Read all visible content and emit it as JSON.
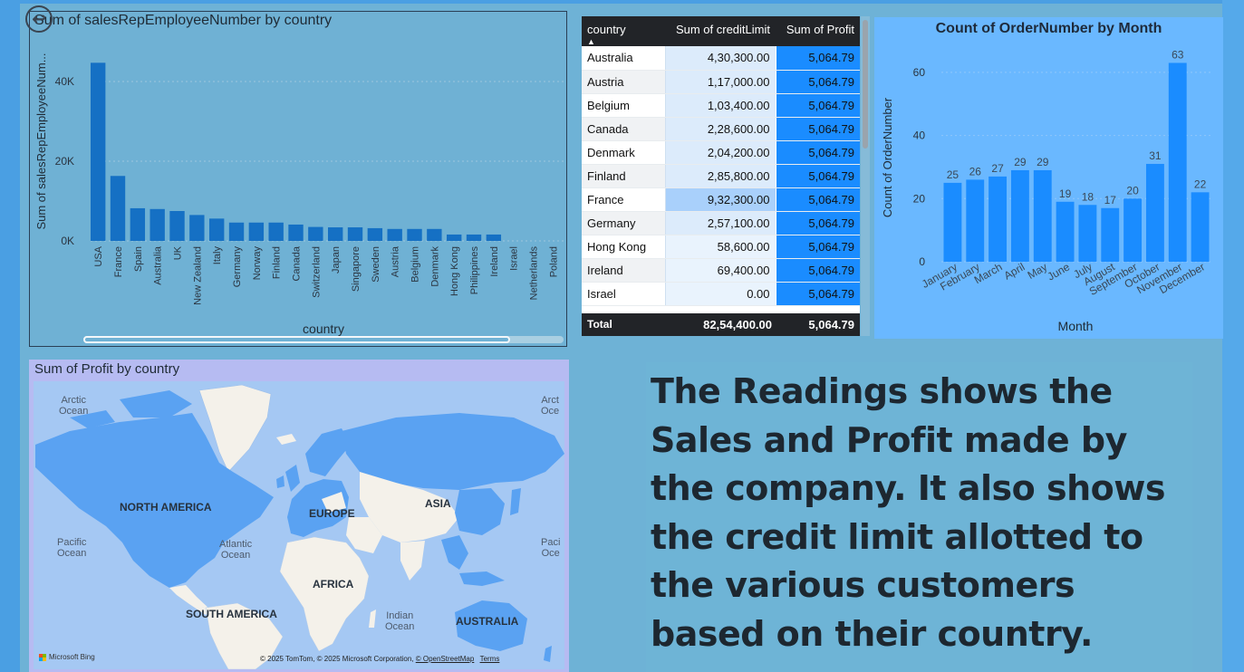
{
  "colors": {
    "accent": "#1a8cff",
    "bar": "#1570c4",
    "month_bar": "#1a8cff"
  },
  "bar_chart": {
    "back_icon": "back-arrow-icon",
    "title": "Sum of salesRepEmployeeNumber by country",
    "xlabel": "country",
    "ylabel": "Sum of salesRepEmployeeNum...",
    "ytick_labels": [
      "0K",
      "20K",
      "40K"
    ]
  },
  "table": {
    "headers": {
      "country": "country",
      "credit": "Sum of creditLimit",
      "profit": "Sum of Profit"
    },
    "rows": [
      {
        "country": "Australia",
        "credit": "4,30,300.00",
        "profit": "5,064.79"
      },
      {
        "country": "Austria",
        "credit": "1,17,000.00",
        "profit": "5,064.79"
      },
      {
        "country": "Belgium",
        "credit": "1,03,400.00",
        "profit": "5,064.79"
      },
      {
        "country": "Canada",
        "credit": "2,28,600.00",
        "profit": "5,064.79"
      },
      {
        "country": "Denmark",
        "credit": "2,04,200.00",
        "profit": "5,064.79"
      },
      {
        "country": "Finland",
        "credit": "2,85,800.00",
        "profit": "5,064.79"
      },
      {
        "country": "France",
        "credit": "9,32,300.00",
        "profit": "5,064.79"
      },
      {
        "country": "Germany",
        "credit": "2,57,100.00",
        "profit": "5,064.79"
      },
      {
        "country": "Hong Kong",
        "credit": "58,600.00",
        "profit": "5,064.79"
      },
      {
        "country": "Ireland",
        "credit": "69,400.00",
        "profit": "5,064.79"
      },
      {
        "country": "Israel",
        "credit": "0.00",
        "profit": "5,064.79"
      }
    ],
    "total": {
      "label": "Total",
      "credit": "82,54,400.00",
      "profit": "5,064.79"
    }
  },
  "month_chart": {
    "title": "Count of OrderNumber by Month",
    "xlabel": "Month",
    "ylabel": "Count of OrderNumber",
    "ytick_labels": [
      "0",
      "20",
      "40",
      "60"
    ]
  },
  "map": {
    "title": "Sum of Profit by country",
    "oceans": {
      "arctic_left": "Arctic\nOcean",
      "arctic_right": "Arct\nOce",
      "pacific_left": "Pacific\nOcean",
      "pacific_right": "Paci\nOce",
      "atlantic": "Atlantic\nOcean",
      "indian": "Indian\nOcean"
    },
    "regions": {
      "north_america": "NORTH AMERICA",
      "south_america": "SOUTH AMERICA",
      "europe": "EUROPE",
      "africa": "AFRICA",
      "asia": "ASIA",
      "australia": "AUSTRALIA"
    },
    "provider": "Microsoft Bing",
    "copyright": "© 2025 TomTom, © 2025 Microsoft Corporation,",
    "osm_link": "© OpenStreetMap",
    "terms_link": "Terms"
  },
  "text_box": {
    "text": "The Readings shows the Sales and Profit made by the company. It also shows the credit limit allotted to the various customers based on their country."
  },
  "chart_data": [
    {
      "type": "bar",
      "title": "Sum of salesRepEmployeeNumber by country",
      "xlabel": "country",
      "ylabel": "Sum of salesRepEmployeeNum...",
      "categories": [
        "USA",
        "France",
        "Spain",
        "Australia",
        "UK",
        "New Zealand",
        "Italy",
        "Germany",
        "Norway",
        "Finland",
        "Canada",
        "Switzerland",
        "Japan",
        "Singapore",
        "Sweden",
        "Austria",
        "Belgium",
        "Denmark",
        "Hong Kong",
        "Philippines",
        "Ireland",
        "Israel",
        "Netherlands",
        "Poland"
      ],
      "values": [
        44700,
        16300,
        8200,
        8000,
        7500,
        6500,
        5600,
        4600,
        4600,
        4600,
        4100,
        3500,
        3400,
        3400,
        3200,
        3000,
        3000,
        3000,
        1600,
        1600,
        1600,
        0,
        0,
        0
      ],
      "ylim": [
        0,
        50000
      ],
      "grid": true
    },
    {
      "type": "bar",
      "title": "Count of OrderNumber by Month",
      "xlabel": "Month",
      "ylabel": "Count of OrderNumber",
      "categories": [
        "January",
        "February",
        "March",
        "April",
        "May",
        "June",
        "July",
        "August",
        "September",
        "October",
        "November",
        "December"
      ],
      "values": [
        25,
        26,
        27,
        29,
        29,
        19,
        18,
        17,
        20,
        31,
        63,
        22
      ],
      "ylim": [
        0,
        66
      ],
      "grid": true
    }
  ]
}
